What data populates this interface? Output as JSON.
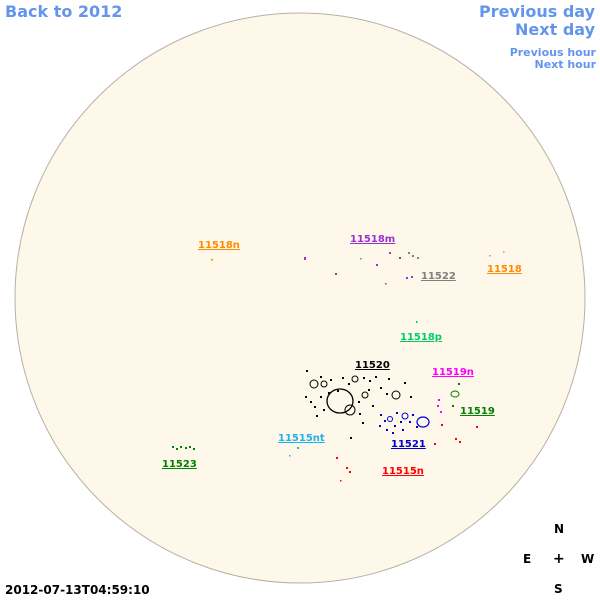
{
  "nav": {
    "back": "Back to 2012",
    "previous_day": "Previous day",
    "next_day": "Next day",
    "previous_hour": "Previous hour",
    "next_hour": "Next hour"
  },
  "timestamp": "2012-07-13T04:59:10",
  "compass": {
    "north": "N",
    "south": "S",
    "east": "E",
    "west": "W",
    "center": "+"
  },
  "colors": {
    "disk_fill": "#fdf8ea",
    "disk_stroke": "#b9b0a4",
    "nav": "#6495ed"
  },
  "regions": [
    {
      "label": "11518n",
      "color": "#ff8c00"
    },
    {
      "label": "11518m",
      "color": "#9932cc"
    },
    {
      "label": "11522",
      "color": "#808080"
    },
    {
      "label": "11518",
      "color": "#ff8c00"
    },
    {
      "label": "11518p",
      "color": "#00cc66"
    },
    {
      "label": "11520",
      "color": "#000000"
    },
    {
      "label": "11519n",
      "color": "#ff00ff"
    },
    {
      "label": "11519",
      "color": "#008000"
    },
    {
      "label": "11515nt",
      "color": "#1eb4f0"
    },
    {
      "label": "11521",
      "color": "#0000cd"
    },
    {
      "label": "11515n",
      "color": "#ff0000"
    },
    {
      "label": "11523",
      "color": "#008000"
    }
  ]
}
